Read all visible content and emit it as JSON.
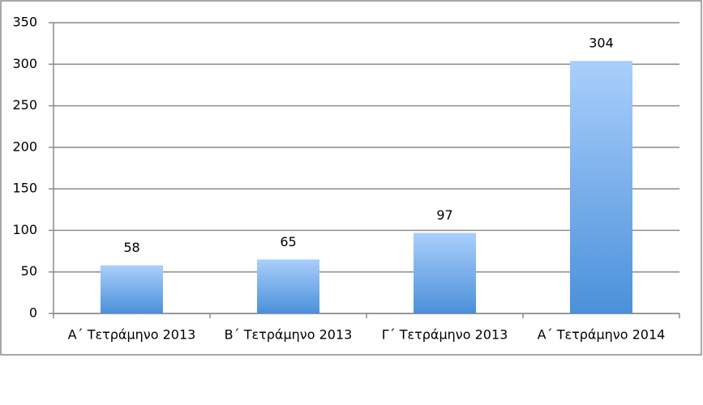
{
  "chart_data": {
    "type": "bar",
    "categories": [
      "Α΄ Τετράμηνο 2013",
      "Β΄ Τετράμηνο 2013",
      "Γ΄ Τετράμηνο 2013",
      "Α΄ Τετράμηνο 2014"
    ],
    "values": [
      58,
      65,
      97,
      304
    ],
    "colors": [
      "#aacffc",
      "#4b90da"
    ],
    "ylim": [
      0,
      350
    ],
    "yticks": [
      0,
      50,
      100,
      150,
      200,
      250,
      300,
      350
    ],
    "grid": true
  }
}
